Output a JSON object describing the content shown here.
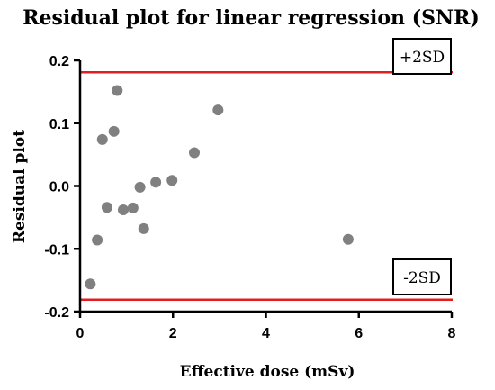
{
  "chart_data": {
    "type": "scatter",
    "title": "Residual plot for linear regression (SNR)",
    "xlabel": "Effective dose (mSv)",
    "ylabel": "Residual plot",
    "xlim": [
      0,
      8
    ],
    "ylim": [
      -0.2,
      0.2
    ],
    "x_ticks": [
      0,
      2,
      4,
      6,
      8
    ],
    "y_ticks": [
      -0.2,
      -0.1,
      0.0,
      0.1,
      0.2
    ],
    "x_tick_labels": [
      "0",
      "2",
      "4",
      "6",
      "8"
    ],
    "y_tick_labels": [
      "-0.2",
      "-0.1",
      "0.0",
      "0.1",
      "0.2"
    ],
    "grid": false,
    "points": [
      {
        "x": 0.22,
        "y": -0.156
      },
      {
        "x": 0.37,
        "y": -0.086
      },
      {
        "x": 0.48,
        "y": 0.074
      },
      {
        "x": 0.58,
        "y": -0.034
      },
      {
        "x": 0.73,
        "y": 0.087
      },
      {
        "x": 0.8,
        "y": 0.152
      },
      {
        "x": 0.93,
        "y": -0.038
      },
      {
        "x": 1.14,
        "y": -0.035
      },
      {
        "x": 1.29,
        "y": -0.002
      },
      {
        "x": 1.37,
        "y": -0.068
      },
      {
        "x": 1.63,
        "y": 0.006
      },
      {
        "x": 1.98,
        "y": 0.009
      },
      {
        "x": 2.46,
        "y": 0.053
      },
      {
        "x": 2.97,
        "y": 0.121
      },
      {
        "x": 5.77,
        "y": -0.085
      }
    ],
    "reference_lines": [
      {
        "y": 0.181,
        "label": "+2SD"
      },
      {
        "y": -0.181,
        "label": "-2SD"
      }
    ],
    "colors": {
      "points": "#808080",
      "reference_lines": "#e02020",
      "axes": "#000000"
    }
  }
}
